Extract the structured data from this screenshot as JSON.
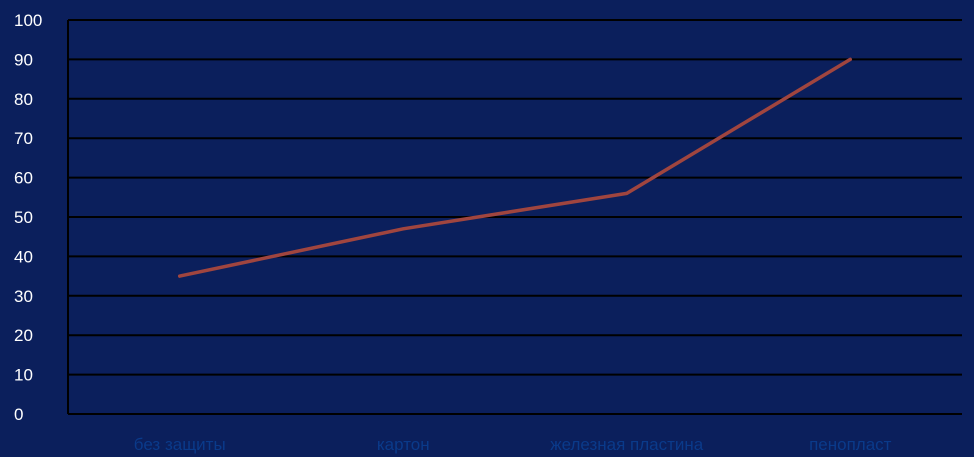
{
  "chart_data": {
    "type": "line",
    "categories": [
      "без защиты",
      "картон",
      "железная пластина",
      "пенопласт"
    ],
    "series": [
      {
        "values": [
          35,
          47,
          56,
          90
        ]
      }
    ],
    "ylim": [
      0,
      100
    ],
    "yticks": [
      0,
      10,
      20,
      30,
      40,
      50,
      60,
      70,
      80,
      90,
      100
    ],
    "grid": true,
    "legend": "none",
    "colors": {
      "background": "#0b1f5c",
      "plot_area": "#0b1f5c",
      "gridline": "#000000",
      "line": "#a0453f",
      "tick_label": "#ffffff",
      "category_label": "#0a3a8a"
    }
  }
}
